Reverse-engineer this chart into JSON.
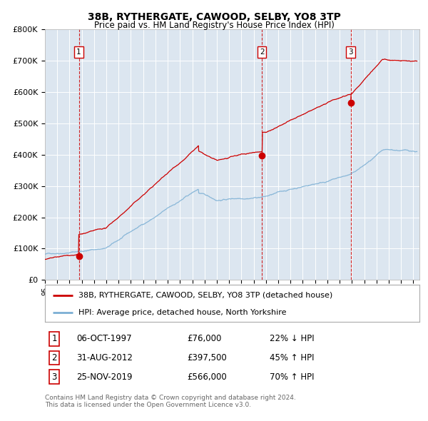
{
  "title1": "38B, RYTHERGATE, CAWOOD, SELBY, YO8 3TP",
  "title2": "Price paid vs. HM Land Registry's House Price Index (HPI)",
  "bg_color": "#dce6f0",
  "fig_bg_color": "#ffffff",
  "red_line_color": "#cc0000",
  "blue_line_color": "#7bafd4",
  "sale1_date": 1997.76,
  "sale1_price": 76000,
  "sale2_date": 2012.67,
  "sale2_price": 397500,
  "sale3_date": 2019.9,
  "sale3_price": 566000,
  "vline_color": "#cc0000",
  "marker_color": "#cc0000",
  "legend_label_red": "38B, RYTHERGATE, CAWOOD, SELBY, YO8 3TP (detached house)",
  "legend_label_blue": "HPI: Average price, detached house, North Yorkshire",
  "table_rows": [
    {
      "num": "1",
      "date": "06-OCT-1997",
      "price": "£76,000",
      "hpi": "22% ↓ HPI"
    },
    {
      "num": "2",
      "date": "31-AUG-2012",
      "price": "£397,500",
      "hpi": "45% ↑ HPI"
    },
    {
      "num": "3",
      "date": "25-NOV-2019",
      "price": "£566,000",
      "hpi": "70% ↑ HPI"
    }
  ],
  "footnote1": "Contains HM Land Registry data © Crown copyright and database right 2024.",
  "footnote2": "This data is licensed under the Open Government Licence v3.0.",
  "xmin": 1995.0,
  "xmax": 2025.5,
  "ymin": 0,
  "ymax": 800000,
  "yticks": [
    0,
    100000,
    200000,
    300000,
    400000,
    500000,
    600000,
    700000,
    800000
  ],
  "ytick_labels": [
    "£0",
    "£100K",
    "£200K",
    "£300K",
    "£400K",
    "£500K",
    "£600K",
    "£700K",
    "£800K"
  ]
}
